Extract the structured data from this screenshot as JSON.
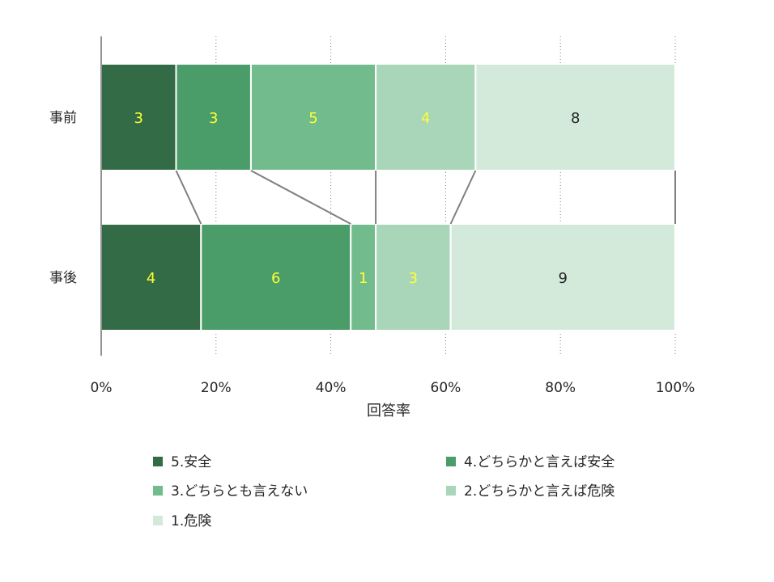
{
  "chart_data": {
    "type": "bar",
    "orientation": "horizontal",
    "stacked": "percent",
    "categories": [
      "事前",
      "事後"
    ],
    "series": [
      {
        "name": "5.安全",
        "values": [
          3,
          4
        ],
        "color": "#336b46",
        "label_color": "#ffff33"
      },
      {
        "name": "4.どちらかと言えば安全",
        "values": [
          3,
          6
        ],
        "color": "#4a9c69",
        "label_color": "#ffff33"
      },
      {
        "name": "3.どちらとも言えない",
        "values": [
          5,
          1
        ],
        "color": "#72bb8d",
        "label_color": "#ffff33"
      },
      {
        "name": "2.どちらかと言えば危険",
        "values": [
          4,
          3
        ],
        "color": "#a9d6b8",
        "label_color": "#ffff33"
      },
      {
        "name": "1.危険",
        "values": [
          8,
          9
        ],
        "color": "#d3eadb",
        "label_color": "#262626"
      }
    ],
    "xlabel": "回答率",
    "ylabel": "",
    "xlim": [
      0,
      100
    ],
    "xticks": [
      "0%",
      "20%",
      "40%",
      "60%",
      "80%",
      "100%"
    ],
    "grid": "vertical dotted",
    "series_lines": true,
    "legend": "bottom"
  }
}
